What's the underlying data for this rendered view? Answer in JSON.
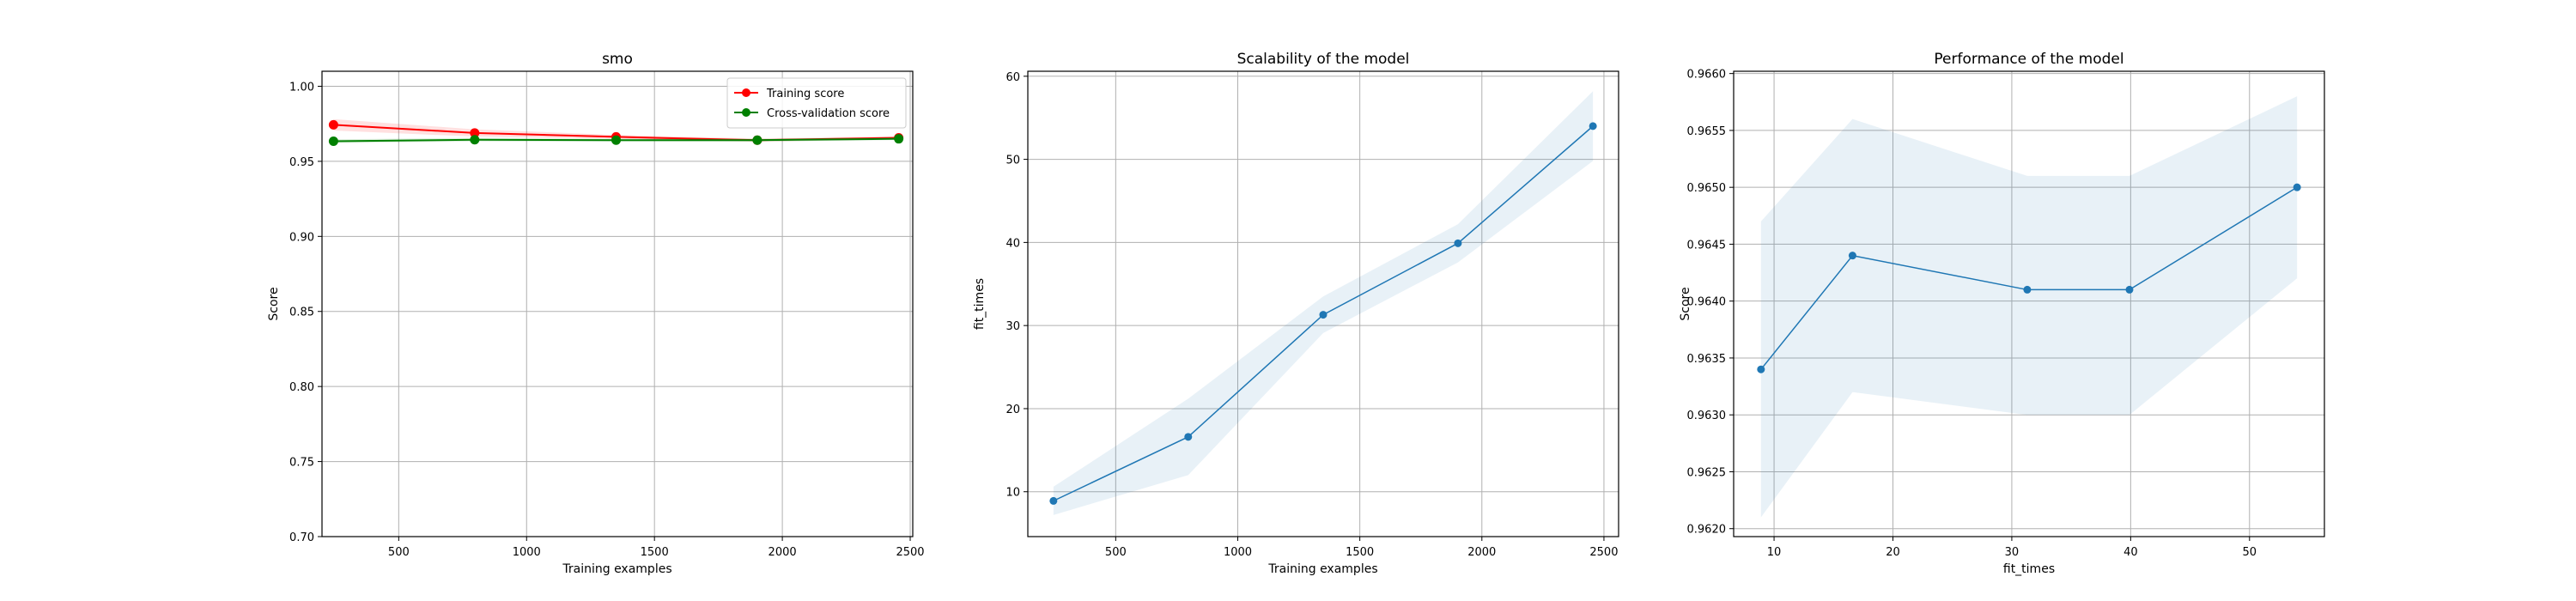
{
  "chart_data": [
    {
      "type": "line",
      "title": "smo",
      "xlabel": "Training examples",
      "ylabel": "Score",
      "xlim": [
        200,
        2510
      ],
      "ylim": [
        0.7,
        1.01
      ],
      "xticks": [
        500,
        1000,
        1500,
        2000,
        2500
      ],
      "yticks": [
        0.7,
        0.75,
        0.8,
        0.85,
        0.9,
        0.95,
        1.0
      ],
      "ytick_decimals": 2,
      "grid": true,
      "legend": "top-right",
      "x": [
        245,
        797,
        1350,
        1902,
        2455
      ],
      "series": [
        {
          "name": "Training score",
          "color": "#ff0000",
          "values": [
            0.9743,
            0.9689,
            0.9663,
            0.9641,
            0.9657
          ],
          "band_lower": [
            0.9705,
            0.9665,
            0.965,
            0.963,
            0.9648
          ],
          "band_upper": [
            0.9781,
            0.9713,
            0.9676,
            0.9652,
            0.9666
          ]
        },
        {
          "name": "Cross-validation score",
          "color": "#008000",
          "values": [
            0.9634,
            0.9644,
            0.9641,
            0.9641,
            0.965
          ],
          "band_lower": [
            0.9621,
            0.9632,
            0.963,
            0.963,
            0.9642
          ],
          "band_upper": [
            0.9647,
            0.9656,
            0.9651,
            0.9651,
            0.9658
          ]
        }
      ]
    },
    {
      "type": "line",
      "title": "Scalability of the model",
      "xlabel": "Training examples",
      "ylabel": "fit_times",
      "xlim": [
        140,
        2560
      ],
      "ylim": [
        4.6,
        60.6
      ],
      "xticks": [
        500,
        1000,
        1500,
        2000,
        2500
      ],
      "yticks": [
        10,
        20,
        30,
        40,
        50,
        60
      ],
      "ytick_decimals": 0,
      "grid": true,
      "x": [
        245,
        797,
        1350,
        1902,
        2455
      ],
      "series": [
        {
          "name": "",
          "color": "#1f77b4",
          "values": [
            8.9,
            16.6,
            31.3,
            39.9,
            54.0
          ],
          "band_lower": [
            7.2,
            12.0,
            29.1,
            37.6,
            49.8
          ],
          "band_upper": [
            10.6,
            21.2,
            33.5,
            42.2,
            58.2
          ]
        }
      ]
    },
    {
      "type": "line",
      "title": "Performance of the model",
      "xlabel": "fit_times",
      "ylabel": "Score",
      "xlim": [
        6.6,
        56.3
      ],
      "ylim": [
        0.96193,
        0.96602
      ],
      "xticks": [
        10,
        20,
        30,
        40,
        50
      ],
      "yticks": [
        0.962,
        0.9625,
        0.963,
        0.9635,
        0.964,
        0.9645,
        0.965,
        0.9655,
        0.966
      ],
      "ytick_decimals": 4,
      "grid": true,
      "x": [
        8.9,
        16.6,
        31.3,
        39.9,
        54.0
      ],
      "series": [
        {
          "name": "",
          "color": "#1f77b4",
          "values": [
            0.9634,
            0.9644,
            0.9641,
            0.9641,
            0.965
          ],
          "band_lower": [
            0.9621,
            0.9632,
            0.963,
            0.963,
            0.9642
          ],
          "band_upper": [
            0.9647,
            0.9656,
            0.9651,
            0.9651,
            0.9658
          ]
        }
      ]
    }
  ]
}
